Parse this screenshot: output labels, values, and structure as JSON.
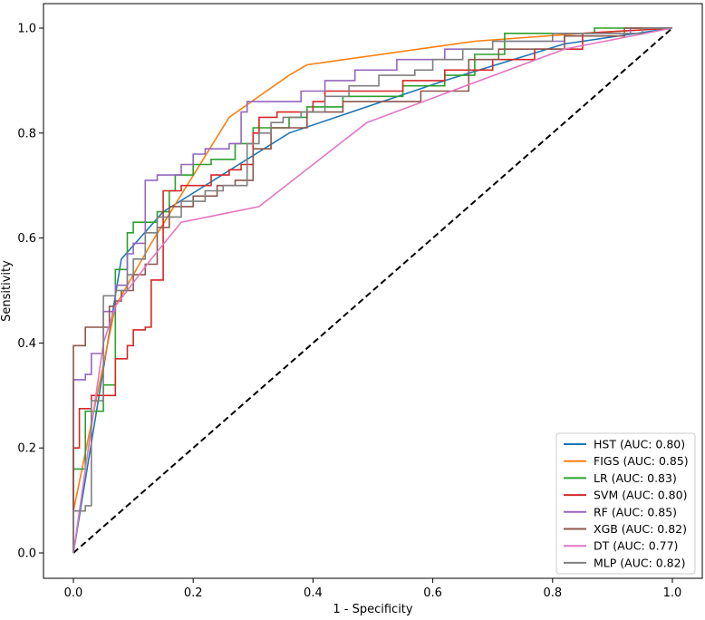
{
  "chart_data": {
    "type": "line",
    "title": "",
    "xlabel": "1 - Specificity",
    "ylabel": "Sensitivity",
    "xlim": [
      -0.05,
      1.05
    ],
    "ylim": [
      -0.05,
      1.03
    ],
    "xticks": [
      0.0,
      0.2,
      0.4,
      0.6,
      0.8,
      1.0
    ],
    "yticks": [
      0.0,
      0.2,
      0.4,
      0.6,
      0.8,
      1.0
    ],
    "tick_labels_x": [
      "0.0",
      "0.2",
      "0.4",
      "0.6",
      "0.8",
      "1.0"
    ],
    "tick_labels_y": [
      "0.0",
      "0.2",
      "0.4",
      "0.6",
      "0.8",
      "1.0"
    ],
    "legend_position": "lower-right",
    "diagonal": {
      "name": "chance",
      "color": "#000000",
      "style": "dashed"
    },
    "series": [
      {
        "name": "HST",
        "label": "HST (AUC: 0.80)",
        "color": "#1f77b4",
        "step": false,
        "points": [
          [
            0,
            0
          ],
          [
            0.08,
            0.56
          ],
          [
            0.15,
            0.65
          ],
          [
            0.36,
            0.8
          ],
          [
            0.62,
            0.9
          ],
          [
            0.82,
            0.97
          ],
          [
            1,
            1
          ]
        ]
      },
      {
        "name": "FIGS",
        "label": "FIGS (AUC: 0.85)",
        "color": "#ff7f0e",
        "step": false,
        "points": [
          [
            0,
            0
          ],
          [
            0,
            0.08
          ],
          [
            0.07,
            0.47
          ],
          [
            0.13,
            0.59
          ],
          [
            0.26,
            0.83
          ],
          [
            0.36,
            0.91
          ],
          [
            0.39,
            0.93
          ],
          [
            0.67,
            0.975
          ],
          [
            0.85,
            0.99
          ],
          [
            1,
            1
          ]
        ]
      },
      {
        "name": "LR",
        "label": "LR (AUC: 0.83)",
        "color": "#2ca02c",
        "step": true,
        "points": [
          [
            0,
            0
          ],
          [
            0,
            0.16
          ],
          [
            0.02,
            0.16
          ],
          [
            0.02,
            0.27
          ],
          [
            0.05,
            0.27
          ],
          [
            0.05,
            0.32
          ],
          [
            0.07,
            0.32
          ],
          [
            0.07,
            0.54
          ],
          [
            0.09,
            0.54
          ],
          [
            0.09,
            0.61
          ],
          [
            0.1,
            0.61
          ],
          [
            0.1,
            0.63
          ],
          [
            0.14,
            0.63
          ],
          [
            0.14,
            0.65
          ],
          [
            0.16,
            0.65
          ],
          [
            0.16,
            0.69
          ],
          [
            0.17,
            0.69
          ],
          [
            0.17,
            0.72
          ],
          [
            0.2,
            0.72
          ],
          [
            0.2,
            0.74
          ],
          [
            0.23,
            0.74
          ],
          [
            0.23,
            0.75
          ],
          [
            0.27,
            0.75
          ],
          [
            0.27,
            0.78
          ],
          [
            0.3,
            0.78
          ],
          [
            0.3,
            0.81
          ],
          [
            0.36,
            0.81
          ],
          [
            0.36,
            0.83
          ],
          [
            0.39,
            0.83
          ],
          [
            0.39,
            0.85
          ],
          [
            0.45,
            0.85
          ],
          [
            0.45,
            0.87
          ],
          [
            0.55,
            0.87
          ],
          [
            0.55,
            0.89
          ],
          [
            0.62,
            0.89
          ],
          [
            0.62,
            0.91
          ],
          [
            0.67,
            0.91
          ],
          [
            0.67,
            0.95
          ],
          [
            0.72,
            0.95
          ],
          [
            0.72,
            0.99
          ],
          [
            0.87,
            0.99
          ],
          [
            0.87,
            1.0
          ],
          [
            1,
            1
          ]
        ]
      },
      {
        "name": "SVM",
        "label": "SVM (AUC: 0.80)",
        "color": "#d62728",
        "step": true,
        "points": [
          [
            0,
            0
          ],
          [
            0,
            0.2
          ],
          [
            0.01,
            0.2
          ],
          [
            0.01,
            0.275
          ],
          [
            0.03,
            0.275
          ],
          [
            0.03,
            0.3
          ],
          [
            0.07,
            0.3
          ],
          [
            0.07,
            0.37
          ],
          [
            0.09,
            0.37
          ],
          [
            0.09,
            0.395
          ],
          [
            0.1,
            0.395
          ],
          [
            0.1,
            0.425
          ],
          [
            0.12,
            0.425
          ],
          [
            0.12,
            0.43
          ],
          [
            0.13,
            0.43
          ],
          [
            0.13,
            0.52
          ],
          [
            0.15,
            0.52
          ],
          [
            0.15,
            0.69
          ],
          [
            0.18,
            0.69
          ],
          [
            0.18,
            0.7
          ],
          [
            0.23,
            0.7
          ],
          [
            0.23,
            0.72
          ],
          [
            0.26,
            0.72
          ],
          [
            0.26,
            0.73
          ],
          [
            0.28,
            0.73
          ],
          [
            0.28,
            0.74
          ],
          [
            0.3,
            0.74
          ],
          [
            0.3,
            0.8
          ],
          [
            0.31,
            0.8
          ],
          [
            0.31,
            0.83
          ],
          [
            0.34,
            0.83
          ],
          [
            0.34,
            0.84
          ],
          [
            0.4,
            0.84
          ],
          [
            0.4,
            0.86
          ],
          [
            0.42,
            0.86
          ],
          [
            0.42,
            0.88
          ],
          [
            0.55,
            0.88
          ],
          [
            0.55,
            0.9
          ],
          [
            0.62,
            0.9
          ],
          [
            0.62,
            0.92
          ],
          [
            0.7,
            0.92
          ],
          [
            0.7,
            0.94
          ],
          [
            0.77,
            0.94
          ],
          [
            0.77,
            0.96
          ],
          [
            0.85,
            0.96
          ],
          [
            0.85,
            0.99
          ],
          [
            1,
            1
          ]
        ]
      },
      {
        "name": "RF",
        "label": "RF (AUC: 0.85)",
        "color": "#9467bd",
        "step": true,
        "points": [
          [
            0,
            0
          ],
          [
            0,
            0.33
          ],
          [
            0.02,
            0.33
          ],
          [
            0.02,
            0.34
          ],
          [
            0.03,
            0.34
          ],
          [
            0.03,
            0.38
          ],
          [
            0.05,
            0.38
          ],
          [
            0.05,
            0.46
          ],
          [
            0.07,
            0.46
          ],
          [
            0.07,
            0.51
          ],
          [
            0.09,
            0.51
          ],
          [
            0.09,
            0.57
          ],
          [
            0.1,
            0.57
          ],
          [
            0.1,
            0.59
          ],
          [
            0.12,
            0.59
          ],
          [
            0.12,
            0.71
          ],
          [
            0.14,
            0.71
          ],
          [
            0.14,
            0.72
          ],
          [
            0.18,
            0.72
          ],
          [
            0.18,
            0.74
          ],
          [
            0.2,
            0.74
          ],
          [
            0.2,
            0.76
          ],
          [
            0.22,
            0.76
          ],
          [
            0.22,
            0.77
          ],
          [
            0.26,
            0.77
          ],
          [
            0.26,
            0.78
          ],
          [
            0.28,
            0.78
          ],
          [
            0.28,
            0.84
          ],
          [
            0.29,
            0.84
          ],
          [
            0.29,
            0.86
          ],
          [
            0.38,
            0.86
          ],
          [
            0.38,
            0.88
          ],
          [
            0.42,
            0.88
          ],
          [
            0.42,
            0.9
          ],
          [
            0.47,
            0.9
          ],
          [
            0.47,
            0.92
          ],
          [
            0.54,
            0.92
          ],
          [
            0.54,
            0.94
          ],
          [
            0.62,
            0.94
          ],
          [
            0.62,
            0.96
          ],
          [
            0.7,
            0.96
          ],
          [
            0.7,
            0.975
          ],
          [
            0.82,
            0.975
          ],
          [
            0.82,
            0.99
          ],
          [
            0.93,
            0.99
          ],
          [
            0.93,
            1.0
          ],
          [
            1,
            1
          ]
        ]
      },
      {
        "name": "XGB",
        "label": "XGB (AUC: 0.82)",
        "color": "#8c564b",
        "step": true,
        "points": [
          [
            0,
            0
          ],
          [
            0,
            0.395
          ],
          [
            0.02,
            0.395
          ],
          [
            0.02,
            0.43
          ],
          [
            0.06,
            0.43
          ],
          [
            0.06,
            0.47
          ],
          [
            0.07,
            0.47
          ],
          [
            0.07,
            0.48
          ],
          [
            0.08,
            0.48
          ],
          [
            0.08,
            0.5
          ],
          [
            0.1,
            0.5
          ],
          [
            0.1,
            0.53
          ],
          [
            0.12,
            0.53
          ],
          [
            0.12,
            0.55
          ],
          [
            0.14,
            0.55
          ],
          [
            0.14,
            0.62
          ],
          [
            0.16,
            0.62
          ],
          [
            0.16,
            0.66
          ],
          [
            0.2,
            0.66
          ],
          [
            0.2,
            0.68
          ],
          [
            0.24,
            0.68
          ],
          [
            0.24,
            0.7
          ],
          [
            0.27,
            0.7
          ],
          [
            0.27,
            0.71
          ],
          [
            0.3,
            0.71
          ],
          [
            0.3,
            0.77
          ],
          [
            0.33,
            0.77
          ],
          [
            0.33,
            0.81
          ],
          [
            0.39,
            0.81
          ],
          [
            0.39,
            0.84
          ],
          [
            0.45,
            0.84
          ],
          [
            0.45,
            0.86
          ],
          [
            0.58,
            0.86
          ],
          [
            0.58,
            0.88
          ],
          [
            0.66,
            0.88
          ],
          [
            0.66,
            0.94
          ],
          [
            0.71,
            0.94
          ],
          [
            0.71,
            0.96
          ],
          [
            0.82,
            0.96
          ],
          [
            0.82,
            0.985
          ],
          [
            0.92,
            0.985
          ],
          [
            0.92,
            1.0
          ],
          [
            1,
            1
          ]
        ]
      },
      {
        "name": "DT",
        "label": "DT (AUC: 0.77)",
        "color": "#e377c2",
        "step": false,
        "points": [
          [
            0,
            0
          ],
          [
            0.05,
            0.4
          ],
          [
            0.07,
            0.47
          ],
          [
            0.13,
            0.56
          ],
          [
            0.18,
            0.63
          ],
          [
            0.31,
            0.66
          ],
          [
            0.49,
            0.82
          ],
          [
            0.82,
            0.96
          ],
          [
            1,
            1
          ]
        ]
      },
      {
        "name": "MLP",
        "label": "MLP (AUC: 0.82)",
        "color": "#7f7f7f",
        "step": true,
        "points": [
          [
            0,
            0
          ],
          [
            0,
            0.08
          ],
          [
            0.02,
            0.08
          ],
          [
            0.02,
            0.09
          ],
          [
            0.03,
            0.09
          ],
          [
            0.03,
            0.29
          ],
          [
            0.05,
            0.29
          ],
          [
            0.05,
            0.49
          ],
          [
            0.07,
            0.49
          ],
          [
            0.07,
            0.5
          ],
          [
            0.09,
            0.5
          ],
          [
            0.09,
            0.53
          ],
          [
            0.1,
            0.53
          ],
          [
            0.1,
            0.56
          ],
          [
            0.12,
            0.56
          ],
          [
            0.12,
            0.61
          ],
          [
            0.14,
            0.61
          ],
          [
            0.14,
            0.64
          ],
          [
            0.18,
            0.64
          ],
          [
            0.18,
            0.67
          ],
          [
            0.22,
            0.67
          ],
          [
            0.22,
            0.69
          ],
          [
            0.25,
            0.69
          ],
          [
            0.25,
            0.7
          ],
          [
            0.29,
            0.7
          ],
          [
            0.29,
            0.78
          ],
          [
            0.31,
            0.78
          ],
          [
            0.31,
            0.8
          ],
          [
            0.33,
            0.8
          ],
          [
            0.33,
            0.82
          ],
          [
            0.35,
            0.82
          ],
          [
            0.35,
            0.83
          ],
          [
            0.38,
            0.83
          ],
          [
            0.38,
            0.84
          ],
          [
            0.42,
            0.84
          ],
          [
            0.42,
            0.87
          ],
          [
            0.46,
            0.87
          ],
          [
            0.46,
            0.89
          ],
          [
            0.51,
            0.89
          ],
          [
            0.51,
            0.91
          ],
          [
            0.57,
            0.91
          ],
          [
            0.57,
            0.92
          ],
          [
            0.6,
            0.92
          ],
          [
            0.6,
            0.94
          ],
          [
            0.65,
            0.94
          ],
          [
            0.65,
            0.96
          ],
          [
            0.7,
            0.96
          ],
          [
            0.7,
            0.975
          ],
          [
            0.8,
            0.975
          ],
          [
            0.8,
            0.99
          ],
          [
            0.95,
            0.99
          ],
          [
            0.95,
            1.0
          ],
          [
            1,
            1
          ]
        ]
      }
    ]
  }
}
